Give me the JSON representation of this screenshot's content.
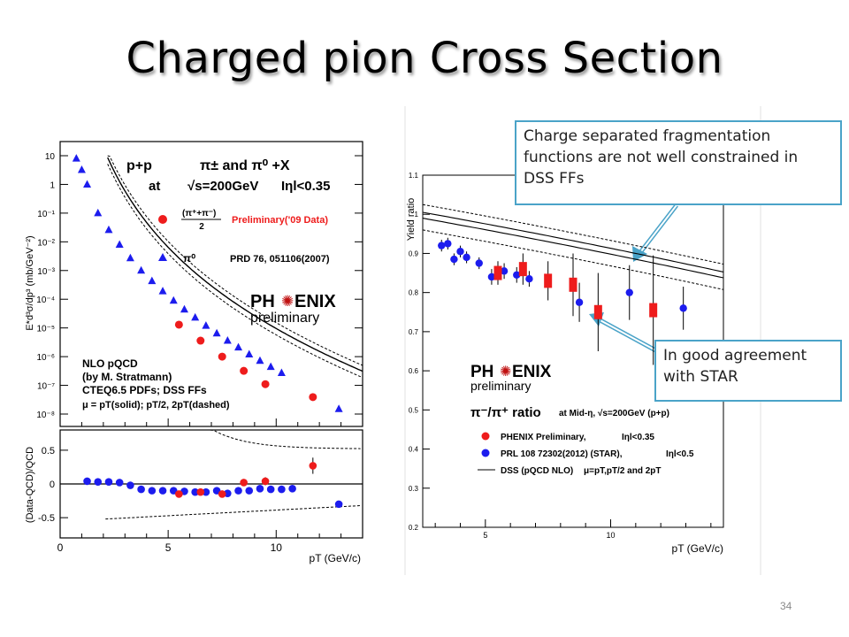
{
  "slide": {
    "title": "Charged pion Cross Section",
    "page_number": "34",
    "callouts": [
      "Charge separated fragmentation functions are not well constrained in DSS FFs",
      "In good agreement with STAR"
    ]
  },
  "chart_data": [
    {
      "type": "scatter",
      "panel": "cross-section",
      "ylabel": "E*d³σ/dp³ (mb/GeV⁻²)",
      "yscale": "log",
      "ylim": [
        1e-08,
        30
      ],
      "xlim": [
        0,
        14
      ],
      "y_ticks": [
        "10",
        "1",
        "10⁻¹",
        "10⁻²",
        "10⁻³",
        "10⁻⁴",
        "10⁻⁵",
        "10⁻⁶",
        "10⁻⁷",
        "10⁻⁸"
      ],
      "text": {
        "reaction_1": "p+p",
        "reaction_2": "π± and π⁰ +X",
        "energy_1": "at",
        "energy_2": "√s=200GeV",
        "energy_3": "Iηl<0.35",
        "legend_frac": "(π⁺+π⁻)",
        "legend_frac_den": "2",
        "legend_pi0": "π⁰",
        "phenix_1": "PH",
        "phenix_2": "ENIX",
        "phenix_3": "preliminary",
        "nlo_1": "NLO pQCD",
        "nlo_2": "(by M. Stratmann)",
        "nlo_3": "CTEQ6.5 PDFs; DSS FFs",
        "nlo_4": "μ = pT(solid); pT/2, 2pT(dashed)"
      },
      "series": [
        {
          "name": "Preliminary('09 Data)",
          "color": "#ee1c1c",
          "marker": "circle",
          "x": [
            5.5,
            6.5,
            7.5,
            8.5,
            9.5,
            11.7
          ],
          "y": [
            1.3e-05,
            3.6e-06,
            1e-06,
            3.2e-07,
            1.1e-07,
            3.9e-08
          ]
        },
        {
          "name": "PRD 76, 051106(2007)",
          "color": "#1c1cee",
          "marker": "triangle",
          "x": [
            0.75,
            1.0,
            1.25,
            1.75,
            2.25,
            2.75,
            3.25,
            3.75,
            4.25,
            4.75,
            5.25,
            5.75,
            6.25,
            6.75,
            7.25,
            7.75,
            8.25,
            8.75,
            9.25,
            9.75,
            10.25,
            12.9
          ],
          "y": [
            8,
            3.2,
            1.0,
            0.1,
            0.026,
            0.008,
            0.0027,
            0.001,
            0.00043,
            0.00019,
            9e-05,
            4.4e-05,
            2.3e-05,
            1.2e-05,
            6.5e-06,
            3.6e-06,
            2.1e-06,
            1.2e-06,
            7.2e-07,
            4.4e-07,
            2.7e-07,
            1.5e-08
          ]
        }
      ]
    },
    {
      "type": "scatter",
      "panel": "ratio-to-nlo",
      "xlabel": "pT (GeV/c)",
      "ylabel": "(Data-QCD)/QCD",
      "xlim": [
        0,
        14
      ],
      "ylim": [
        -0.8,
        0.8
      ],
      "x_ticks": [
        "0",
        "5",
        "10"
      ],
      "y_ticks": [
        "0.5",
        "0",
        "-0.5"
      ],
      "series": [
        {
          "color": "#1c1cee",
          "x": [
            1.25,
            1.75,
            2.25,
            2.75,
            3.25,
            3.75,
            4.25,
            4.75,
            5.25,
            5.75,
            6.25,
            6.75,
            7.25,
            7.75,
            8.25,
            8.75,
            9.25,
            9.75,
            10.25,
            10.75,
            12.9
          ],
          "y": [
            0.04,
            0.03,
            0.03,
            0.02,
            -0.02,
            -0.08,
            -0.1,
            -0.1,
            -0.1,
            -0.11,
            -0.12,
            -0.12,
            -0.1,
            -0.14,
            -0.1,
            -0.1,
            -0.07,
            -0.08,
            -0.08,
            -0.07,
            -0.3
          ]
        },
        {
          "color": "#ee1c1c",
          "x": [
            5.5,
            6.5,
            7.5,
            8.5,
            9.5,
            11.7
          ],
          "y": [
            -0.15,
            -0.12,
            -0.15,
            0.02,
            0.04,
            0.27
          ]
        }
      ]
    },
    {
      "type": "scatter",
      "panel": "yield-ratio",
      "ylabel": "Yield ratio",
      "xlabel": "pT (GeV/c)",
      "xlim": [
        2.5,
        14.5
      ],
      "ylim": [
        0.2,
        1.1
      ],
      "x_ticks": [
        "5",
        "10"
      ],
      "y_ticks": [
        "1.1",
        "1",
        "0.9",
        "0.8",
        "0.7",
        "0.6",
        "0.5",
        "0.4",
        "0.3",
        "0.2"
      ],
      "text": {
        "phenix_1": "PH",
        "phenix_2": "ENIX",
        "phenix_3": "preliminary",
        "ratio_title": "π⁻/π⁺ ratio",
        "ratio_cond": "at Mid-η, √s=200GeV (p+p)",
        "leg_1": "PHENIX Preliminary,",
        "leg_1b": "Iηl<0.35",
        "leg_2": "PRL 108 72302(2012) (STAR),",
        "leg_2b": "Iηl<0.5",
        "leg_3": "DSS (pQCD NLO)",
        "leg_3b": "μ=pT,pT/2 and 2pT"
      },
      "series": [
        {
          "name": "PHENIX Preliminary",
          "color": "#ee1c1c",
          "marker": "square",
          "x": [
            5.5,
            6.5,
            7.5,
            8.5,
            9.5,
            11.7
          ],
          "y": [
            0.85,
            0.86,
            0.83,
            0.82,
            0.75,
            0.755
          ]
        },
        {
          "name": "PRL 108 72302(2012) (STAR)",
          "color": "#1c1cee",
          "marker": "circle",
          "x": [
            3.25,
            3.5,
            3.75,
            4.0,
            4.25,
            4.75,
            5.25,
            5.75,
            6.25,
            6.75,
            8.75,
            10.75,
            12.9
          ],
          "y": [
            0.92,
            0.925,
            0.885,
            0.905,
            0.89,
            0.875,
            0.84,
            0.855,
            0.845,
            0.835,
            0.775,
            0.8,
            0.76
          ]
        }
      ]
    }
  ]
}
